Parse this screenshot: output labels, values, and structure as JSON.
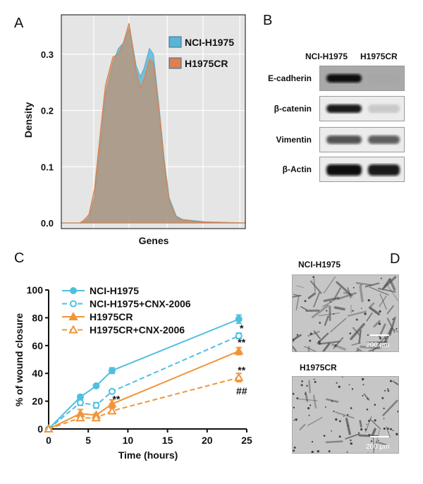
{
  "panels": {
    "a": "A",
    "b": "B",
    "c": "C",
    "d": "D"
  },
  "colors": {
    "blue": "#4fbfdf",
    "orange": "#f0953a",
    "densityBlue": "#5bb4d3",
    "densityOrange": "#d9824e",
    "overlap": "#9e9a86",
    "plotBg": "#e5e5e5"
  },
  "chart_data": [
    {
      "type": "area",
      "panel": "A",
      "xlabel": "Genes",
      "ylabel": "Density",
      "yticks": [
        "0.0",
        "0.1",
        "0.2",
        "0.3"
      ],
      "ylim": [
        -0.01,
        0.37
      ],
      "xlim": [
        0,
        100
      ],
      "grid": true,
      "legend_position": "top-right",
      "series": [
        {
          "name": "NCI-H1975",
          "x": [
            0,
            10,
            12,
            15,
            18,
            21.5,
            24,
            28,
            31,
            33.7,
            36.8,
            38,
            40.6,
            42.9,
            45,
            47.9,
            50,
            53,
            56,
            58.6,
            62.5,
            66,
            78,
            100
          ],
          "y": [
            0,
            0,
            0.002,
            0.01,
            0.045,
            0.15,
            0.23,
            0.285,
            0.31,
            0.32,
            0.345,
            0.33,
            0.28,
            0.26,
            0.275,
            0.31,
            0.3,
            0.21,
            0.11,
            0.045,
            0.012,
            0.006,
            0.002,
            0
          ]
        },
        {
          "name": "H1975CR",
          "x": [
            0,
            10,
            12,
            15,
            18,
            21.5,
            24,
            28,
            31,
            33.7,
            36.8,
            38,
            40.6,
            42.9,
            45,
            47.9,
            50,
            53,
            56,
            58.6,
            62.5,
            66,
            78,
            100
          ],
          "y": [
            0,
            0,
            0.004,
            0.015,
            0.06,
            0.17,
            0.245,
            0.295,
            0.3,
            0.32,
            0.355,
            0.33,
            0.27,
            0.24,
            0.255,
            0.29,
            0.285,
            0.205,
            0.105,
            0.04,
            0.01,
            0.005,
            0.001,
            0
          ]
        }
      ]
    },
    {
      "type": "line",
      "panel": "C",
      "xlabel": "Time (hours)",
      "ylabel": "% of wound closure",
      "xlim": [
        0,
        25
      ],
      "ylim": [
        0,
        100
      ],
      "xticks": [
        "0",
        "5",
        "10",
        "15",
        "20",
        "25"
      ],
      "yticks": [
        "0",
        "20",
        "40",
        "60",
        "80",
        "100"
      ],
      "legend_position": "top-left",
      "x": [
        0,
        4,
        6,
        8,
        24
      ],
      "series": [
        {
          "name": "NCI-H1975",
          "values": [
            0,
            23,
            31,
            42,
            79
          ],
          "errors": [
            0,
            1.5,
            1,
            2,
            3
          ],
          "color": "blue",
          "dashed": false,
          "marker": "filled-circle"
        },
        {
          "name": "NCI-H1975+CNX-2006",
          "values": [
            0,
            19,
            17,
            27,
            67
          ],
          "errors": [
            0,
            2,
            2,
            1,
            2
          ],
          "color": "blue",
          "dashed": true,
          "marker": "open-circle"
        },
        {
          "name": "H1975CR",
          "values": [
            0,
            11,
            10,
            18,
            56
          ],
          "errors": [
            0,
            3,
            1,
            3,
            2.5
          ],
          "color": "orange",
          "dashed": false,
          "marker": "filled-triangle"
        },
        {
          "name": "H1975CR+CNX-2006",
          "values": [
            0,
            8,
            8,
            13,
            37
          ],
          "errors": [
            0,
            2,
            2,
            2,
            3
          ],
          "color": "orange",
          "dashed": true,
          "marker": "open-triangle"
        }
      ],
      "annotations": [
        {
          "text": "**",
          "x": 8,
          "y": 21
        },
        {
          "text": "*",
          "x": 24,
          "y": 72
        },
        {
          "text": "**",
          "x": 24,
          "y": 62
        },
        {
          "text": "**",
          "x": 24,
          "y": 42
        },
        {
          "text": "##",
          "x": 24,
          "y": 27
        }
      ]
    }
  ],
  "westernBlot": {
    "columns": [
      "NCI-H1975",
      "H1975CR"
    ],
    "rows": [
      {
        "label": "E-cadherin",
        "intensity": [
          1.0,
          0.02
        ]
      },
      {
        "label": "β-catenin",
        "intensity": [
          0.95,
          0.15
        ]
      },
      {
        "label": "Vimentin",
        "intensity": [
          0.7,
          0.65
        ]
      },
      {
        "label": "β-Actin",
        "intensity": [
          1.0,
          0.95
        ]
      }
    ]
  },
  "micrographs": [
    {
      "label": "NCI-H1975",
      "scale": "200 μm"
    },
    {
      "label": "H1975CR",
      "scale": "200 μm"
    }
  ]
}
